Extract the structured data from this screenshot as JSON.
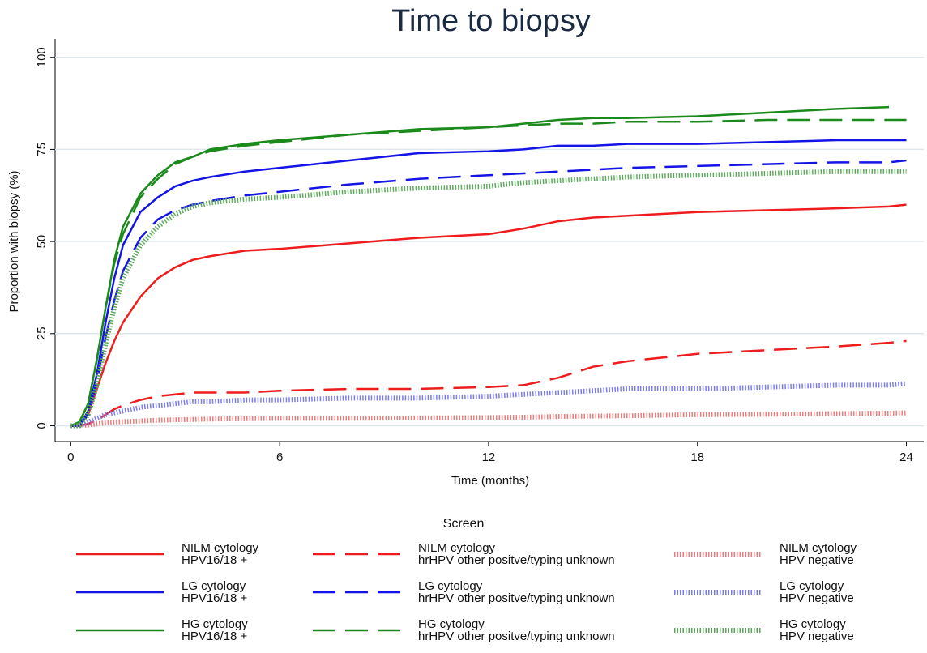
{
  "chart_data": {
    "type": "line",
    "title": "Time to biopsy",
    "x_label": "Time (months)",
    "y_label": "Proportion with biopsy (%)",
    "xlim": [
      -0.45,
      24.5
    ],
    "ylim": [
      -4.3,
      105
    ],
    "xticks": [
      0,
      6,
      12,
      18,
      24
    ],
    "yticks": [
      0,
      25,
      50,
      75,
      100
    ],
    "grid": true,
    "legend_title": "Screen",
    "legend_position": "bottom",
    "x": [
      0,
      0.25,
      0.5,
      0.75,
      1,
      1.25,
      1.5,
      2,
      2.5,
      3,
      3.5,
      4,
      5,
      6,
      8,
      10,
      12,
      13,
      14,
      15,
      16,
      18,
      20,
      22,
      23.5,
      24
    ],
    "series": [
      {
        "name": "NILM cytology\nHPV16/18 +",
        "color": "#ee1c1c",
        "style": "solid",
        "values": [
          0,
          0,
          3,
          10,
          17,
          23,
          28,
          35,
          40,
          43,
          45,
          46,
          47.5,
          48,
          49.5,
          51,
          52,
          53.5,
          55.5,
          56.5,
          57,
          58,
          58.5,
          59,
          59.5,
          60
        ]
      },
      {
        "name": "LG cytology\nHPV16/18 +",
        "color": "#1414e6",
        "style": "solid",
        "values": [
          0,
          0,
          4,
          14,
          28,
          40,
          49,
          58,
          62,
          65,
          66.5,
          67.5,
          69,
          70,
          72,
          74,
          74.5,
          75,
          76,
          76,
          76.5,
          76.5,
          77,
          77.5,
          77.5,
          77.5
        ]
      },
      {
        "name": "HG cytology\nHPV16/18 +",
        "color": "#1a8a1a",
        "style": "solid",
        "values": [
          0,
          1,
          6,
          18,
          32,
          45,
          54,
          63,
          68,
          71.5,
          73,
          75,
          76.5,
          77.5,
          79,
          80.5,
          81,
          82,
          83,
          83.5,
          83.5,
          84,
          85,
          86,
          86.5,
          null
        ]
      },
      {
        "name": "NILM cytology\nhrHPV other positve/typing unknown",
        "color": "#ee1c1c",
        "style": "dashed",
        "values": [
          0,
          0,
          0.5,
          1.5,
          3,
          4.5,
          5.5,
          7,
          8,
          8.5,
          9,
          9,
          9,
          9.5,
          10,
          10,
          10.5,
          11,
          13,
          16,
          17.5,
          19.5,
          20.5,
          21.5,
          22.5,
          23
        ]
      },
      {
        "name": "LG cytology\nhrHPV other positve/typing unknown",
        "color": "#1414e6",
        "style": "dashed",
        "values": [
          0,
          0,
          3,
          12,
          24,
          34,
          42,
          51,
          56,
          58.5,
          60,
          61,
          62.5,
          63.5,
          65.5,
          67,
          68,
          68.5,
          69,
          69.5,
          70,
          70.5,
          71,
          71.5,
          71.5,
          72
        ]
      },
      {
        "name": "HG cytology\nhrHPV other positve/typing unknown",
        "color": "#1a8a1a",
        "style": "dashed",
        "values": [
          0,
          1,
          6,
          18,
          32,
          44,
          52,
          62,
          67,
          71,
          73,
          74.5,
          76,
          77,
          79,
          80,
          81,
          81.5,
          82,
          82,
          82.5,
          82.5,
          83,
          83,
          83,
          83
        ]
      },
      {
        "name": "NILM cytology\nHPV negative",
        "color": "#f07a7a",
        "style": "dotted",
        "values": [
          0,
          0,
          0.2,
          0.5,
          0.8,
          1,
          1.1,
          1.3,
          1.5,
          1.6,
          1.7,
          1.8,
          1.9,
          2,
          2,
          2.1,
          2.2,
          2.3,
          2.5,
          2.6,
          2.7,
          3,
          3.1,
          3.3,
          3.4,
          3.5
        ]
      },
      {
        "name": "LG cytology\nHPV negative",
        "color": "#7a7af0",
        "style": "dotted",
        "values": [
          0,
          0,
          1,
          2,
          3,
          3.5,
          4,
          5,
          5.5,
          6,
          6.5,
          6.5,
          7,
          7,
          7.5,
          7.5,
          8,
          8.5,
          9,
          9.5,
          10,
          10,
          10.5,
          11,
          11,
          11.5
        ]
      },
      {
        "name": "HG cytology\nHPV negative",
        "color": "#5aaa5a",
        "style": "dotted",
        "values": [
          0,
          0,
          3,
          11,
          22,
          32,
          40,
          49,
          54,
          57.5,
          59.5,
          60.5,
          61.5,
          62,
          63.5,
          64.5,
          65,
          66,
          66.5,
          67,
          67.5,
          68,
          68.5,
          69,
          69,
          69
        ]
      }
    ]
  }
}
